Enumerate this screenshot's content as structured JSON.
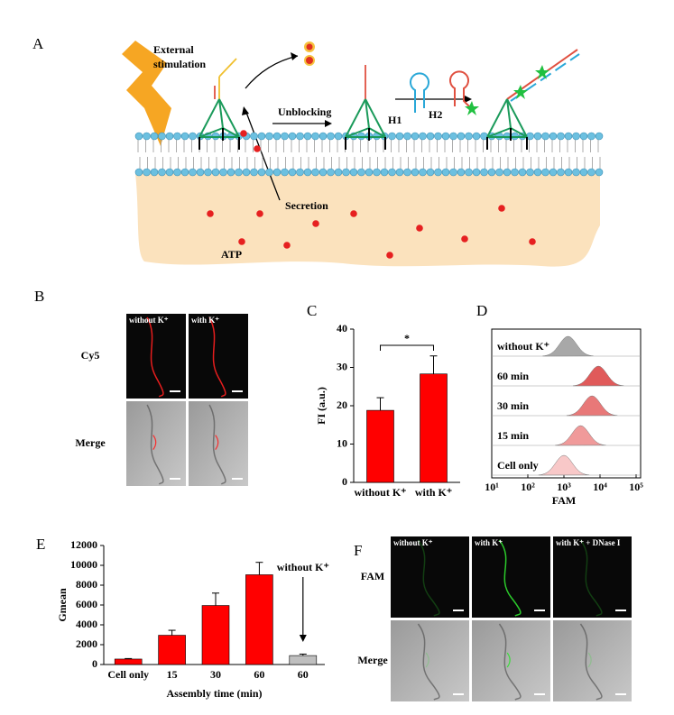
{
  "panels": {
    "A": {
      "label": "A",
      "stimulus": [
        "External",
        "stimulation"
      ],
      "step": "Unblocking",
      "h1": "H1",
      "h2": "H2",
      "secretion": "Secretion",
      "atp": "ATP"
    },
    "B": {
      "label": "B",
      "columns": [
        "without K⁺",
        "with K⁺"
      ],
      "rows": [
        "Cy5",
        "Merge"
      ]
    },
    "C": {
      "label": "C"
    },
    "D": {
      "label": "D"
    },
    "E": {
      "label": "E"
    },
    "F": {
      "label": "F",
      "columns": [
        "without K⁺",
        "with K⁺",
        "with K⁺ + DNase I"
      ],
      "rows": [
        "FAM",
        "Merge"
      ]
    }
  },
  "chart_data": [
    {
      "type": "bar",
      "y_label": "FI (a.u.)",
      "categories": [
        "without K⁺",
        "with K⁺"
      ],
      "values": [
        18.8,
        28.3
      ],
      "errors": [
        3.3,
        4.7
      ],
      "color": "#ff0000",
      "ylim": [
        0,
        40
      ],
      "yticks": [
        0,
        10,
        20,
        30,
        40
      ],
      "annotation": "*"
    },
    {
      "type": "ridgeline",
      "x_label": "FAM",
      "log_x": true,
      "xlim": [
        10,
        100000
      ],
      "xticks": [
        {
          "value": 10,
          "label": "10¹"
        },
        {
          "value": 100,
          "label": "10²"
        },
        {
          "value": 1000,
          "label": "10³"
        },
        {
          "value": 10000,
          "label": "10⁴"
        },
        {
          "value": 100000,
          "label": "10⁵"
        }
      ],
      "series": [
        {
          "name": "without K⁺",
          "color": "#a8a8a8",
          "peak": 1300
        },
        {
          "name": "60 min",
          "color": "#e05a5a",
          "peak": 9000
        },
        {
          "name": "30 min",
          "color": "#e87878",
          "peak": 6000
        },
        {
          "name": "15 min",
          "color": "#f09a9a",
          "peak": 2900
        },
        {
          "name": "Cell only",
          "color": "#f8c8c8",
          "peak": 1000
        }
      ]
    },
    {
      "type": "bar",
      "x_label": "Assembly time (min)",
      "y_label": "Gmean",
      "categories": [
        "Cell only",
        "15",
        "30",
        "60",
        "60"
      ],
      "values": [
        550,
        2950,
        5950,
        9050,
        900
      ],
      "errors": [
        50,
        500,
        1250,
        1250,
        150
      ],
      "colors": [
        "#ff0000",
        "#ff0000",
        "#ff0000",
        "#ff0000",
        "#bfbfbf"
      ],
      "ylim": [
        0,
        12000
      ],
      "yticks": [
        0,
        2000,
        4000,
        6000,
        8000,
        10000,
        12000
      ],
      "annotation": "without K⁺"
    }
  ]
}
